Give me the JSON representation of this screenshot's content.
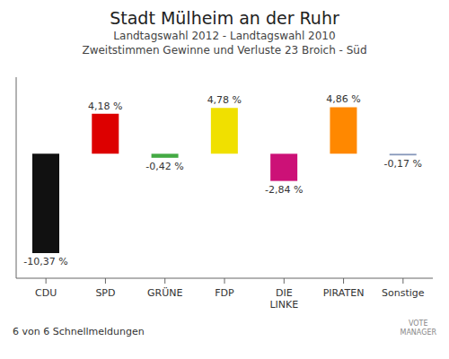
{
  "chart_data": {
    "type": "bar",
    "title": "Stadt Mülheim an der Ruhr",
    "subtitle": [
      "Landtagswahl 2012 - Landtagswahl 2010",
      "Zweitstimmen Gewinne und Verluste 23 Broich - Süd"
    ],
    "annotations": [
      "6 von 6 Schnellmeldungen",
      "VOTE\nMANAGER"
    ],
    "categories": [
      "CDU",
      "SPD",
      "GRÜNE",
      "FDP",
      "DIE\nLINKE",
      "PIRATEN",
      "Sonstige"
    ],
    "values": [
      -10.37,
      4.18,
      -0.42,
      4.78,
      -2.84,
      4.86,
      -0.17
    ],
    "value_labels": [
      "-10,37 %",
      "4,18 %",
      "-0,42 %",
      "4,78 %",
      "-2,84 %",
      "4,86 %",
      "-0,17 %"
    ],
    "colors": [
      "#111111",
      "#dd0000",
      "#44aa44",
      "#f0e000",
      "#cc1177",
      "#ff8800",
      "#8899bb"
    ],
    "ylim": [
      -13,
      8
    ],
    "grid": false,
    "data_labels": true,
    "tick_labels": "x"
  }
}
